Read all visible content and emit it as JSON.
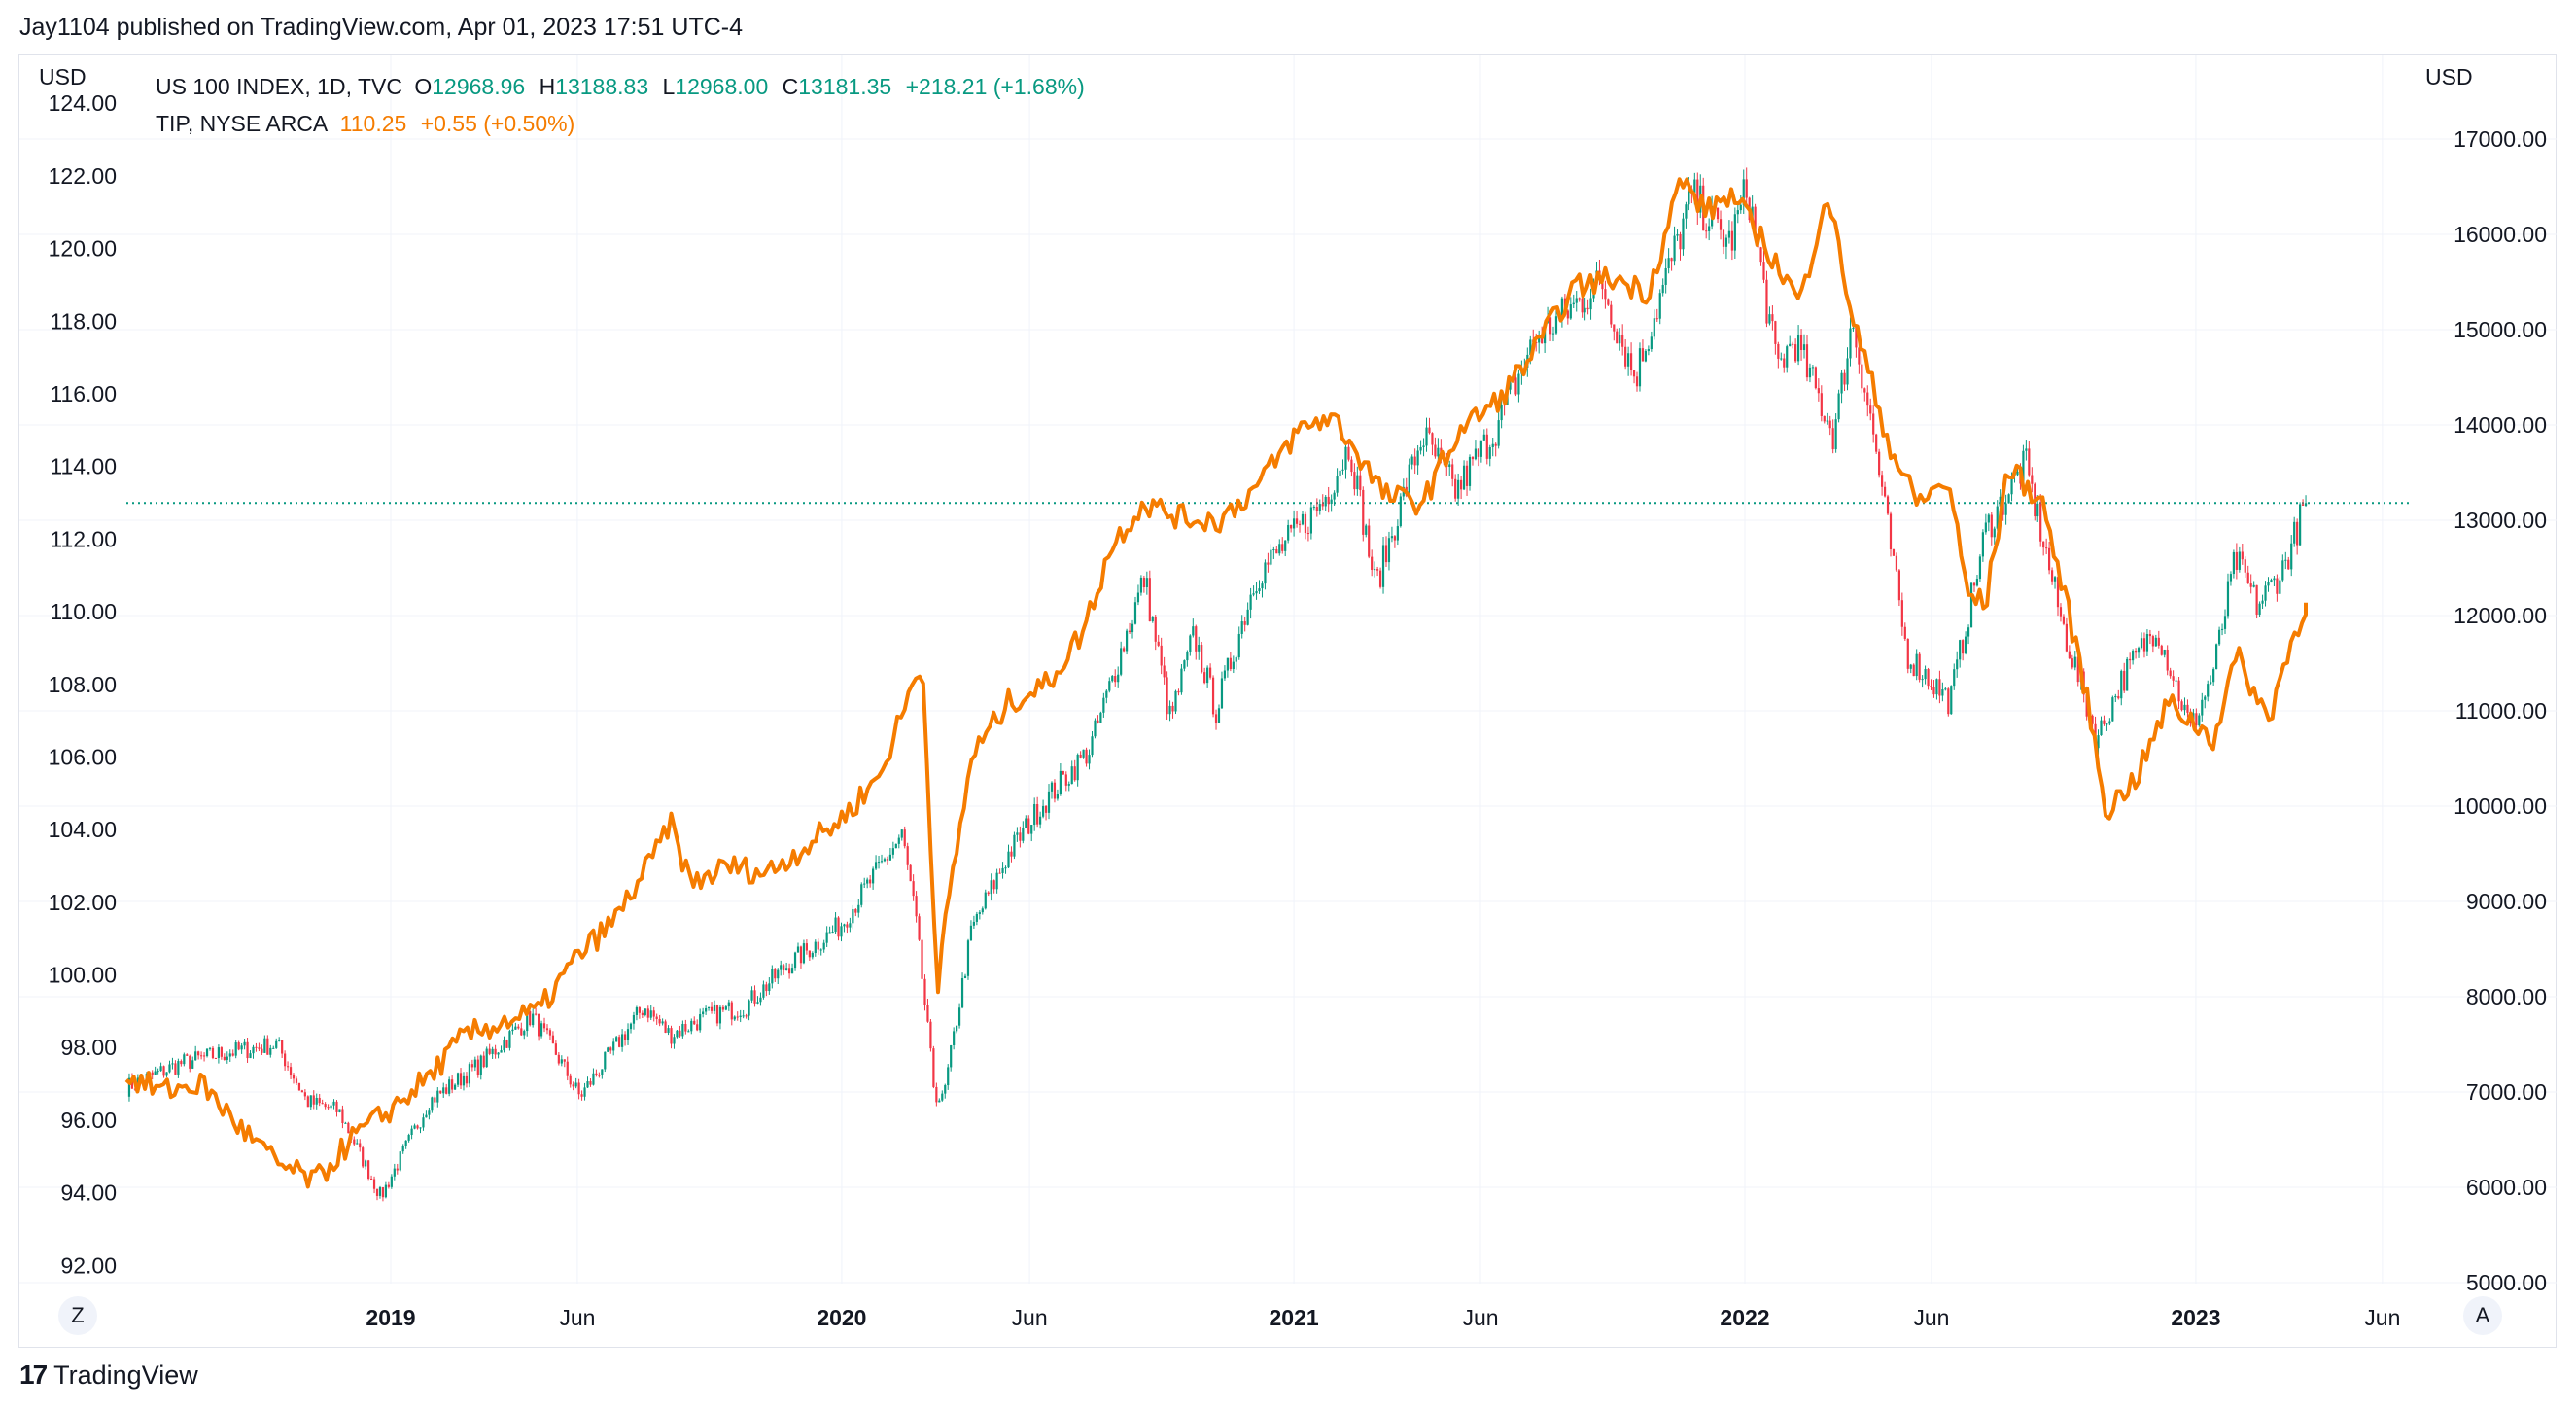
{
  "header": {
    "published": "Jay1104 published on TradingView.com, Apr 01, 2023 17:51 UTC-4"
  },
  "legend": {
    "ndx": {
      "name": "US 100 INDEX, 1D, TVC",
      "o_label": "O",
      "o": "12968.96",
      "h_label": "H",
      "h": "13188.83",
      "l_label": "L",
      "l": "12968.00",
      "c_label": "C",
      "c": "13181.35",
      "chg": "+218.21 (+1.68%)"
    },
    "tip": {
      "name": "TIP, NYSE ARCA",
      "value": "110.25",
      "chg": "+0.55 (+0.50%)"
    }
  },
  "axis": {
    "left_unit": "USD",
    "right_unit": "USD",
    "left_scale_btn": "Z",
    "right_scale_btn": "A"
  },
  "brand": {
    "name": "TradingView"
  },
  "colors": {
    "up": "#089981",
    "down": "#f23645",
    "tip": "#f57c00",
    "grid": "#f0f3fa",
    "price_line": "#089981"
  },
  "chart_data": {
    "type": "line",
    "x_tick_labels": [
      "2019",
      "Jun",
      "2020",
      "Jun",
      "2021",
      "Jun",
      "2022",
      "Jun",
      "2023",
      "Jun"
    ],
    "x_tick_dates": [
      "2019-01-01",
      "2019-06-01",
      "2020-01-01",
      "2020-06-01",
      "2021-01-01",
      "2021-06-01",
      "2022-01-01",
      "2022-06-01",
      "2023-01-01",
      "2023-06-01"
    ],
    "x_tick_bold": [
      true,
      false,
      true,
      false,
      true,
      false,
      true,
      false,
      true,
      false
    ],
    "xlim": [
      "2018-06-01",
      "2023-06-20"
    ],
    "left_axis": {
      "ylim": [
        91.5,
        124.3
      ],
      "ticks": [
        "124.00",
        "122.00",
        "120.00",
        "118.00",
        "116.00",
        "114.00",
        "112.00",
        "110.00",
        "108.00",
        "106.00",
        "104.00",
        "102.00",
        "100.00",
        "98.00",
        "96.00",
        "94.00",
        "92.00"
      ],
      "tick_values": [
        124,
        122,
        120,
        118,
        116,
        114,
        112,
        110,
        108,
        106,
        104,
        102,
        100,
        98,
        96,
        94,
        92
      ]
    },
    "right_axis": {
      "ylim": [
        4990,
        17490
      ],
      "ticks": [
        "17000.00",
        "16000.00",
        "15000.00",
        "14000.00",
        "13000.00",
        "12000.00",
        "11000.00",
        "10000.00",
        "9000.00",
        "8000.00",
        "7000.00",
        "6000.00",
        "5000.00"
      ],
      "tick_values": [
        17000,
        16000,
        15000,
        14000,
        13000,
        12000,
        11000,
        10000,
        9000,
        8000,
        7000,
        6000,
        5000
      ]
    },
    "last_price_line": 13181.35,
    "series": [
      {
        "name": "US 100 INDEX, 1D, TVC",
        "axis": "right",
        "style": "candles",
        "x": [
          "2018-06-01",
          "2018-07-15",
          "2018-08-15",
          "2018-10-01",
          "2018-10-25",
          "2018-11-20",
          "2018-12-24",
          "2019-02-01",
          "2019-03-15",
          "2019-04-25",
          "2019-05-15",
          "2019-06-03",
          "2019-07-25",
          "2019-08-15",
          "2019-09-15",
          "2019-10-15",
          "2019-11-15",
          "2019-12-31",
          "2020-02-19",
          "2020-03-01",
          "2020-03-16",
          "2020-03-23",
          "2020-04-15",
          "2020-05-15",
          "2020-06-10",
          "2020-07-20",
          "2020-09-02",
          "2020-09-23",
          "2020-10-12",
          "2020-10-30",
          "2020-12-01",
          "2021-01-25",
          "2021-02-15",
          "2021-03-08",
          "2021-04-15",
          "2021-05-12",
          "2021-06-15",
          "2021-07-15",
          "2021-09-07",
          "2021-10-04",
          "2021-11-19",
          "2021-12-20",
          "2022-01-03",
          "2022-01-27",
          "2022-02-10",
          "2022-03-14",
          "2022-03-29",
          "2022-04-15",
          "2022-05-12",
          "2022-06-16",
          "2022-07-15",
          "2022-08-16",
          "2022-09-15",
          "2022-10-13",
          "2022-11-01",
          "2022-11-30",
          "2022-12-28",
          "2023-01-15",
          "2023-02-02",
          "2023-02-20",
          "2023-03-13",
          "2023-03-31"
        ],
        "values": [
          7050,
          7300,
          7400,
          7500,
          6900,
          6800,
          5900,
          6900,
          7300,
          7800,
          7400,
          6950,
          7900,
          7600,
          7800,
          7900,
          8300,
          8750,
          9700,
          8800,
          7000,
          6900,
          8700,
          9500,
          10000,
          10600,
          12400,
          10900,
          11800,
          11000,
          12400,
          13200,
          13800,
          12300,
          13900,
          13300,
          14000,
          14900,
          15500,
          14500,
          16400,
          15900,
          16500,
          14600,
          14900,
          13900,
          15100,
          13900,
          11600,
          11100,
          12900,
          13600,
          11900,
          10700,
          11300,
          11900,
          10800,
          11400,
          12600,
          12100,
          12500,
          13181
        ]
      },
      {
        "name": "TIP, NYSE ARCA",
        "axis": "left",
        "style": "line",
        "x": [
          "2018-06-01",
          "2018-07-01",
          "2018-08-01",
          "2018-09-01",
          "2018-10-01",
          "2018-11-01",
          "2018-12-01",
          "2019-01-01",
          "2019-02-01",
          "2019-03-01",
          "2019-04-01",
          "2019-05-01",
          "2019-06-01",
          "2019-07-01",
          "2019-08-01",
          "2019-08-15",
          "2019-09-01",
          "2019-10-01",
          "2019-11-01",
          "2019-12-01",
          "2020-01-01",
          "2020-02-01",
          "2020-03-06",
          "2020-03-19",
          "2020-03-25",
          "2020-04-15",
          "2020-05-15",
          "2020-06-15",
          "2020-07-15",
          "2020-08-06",
          "2020-09-01",
          "2020-10-01",
          "2020-11-01",
          "2020-12-01",
          "2021-01-05",
          "2021-02-01",
          "2021-02-25",
          "2021-03-15",
          "2021-04-15",
          "2021-05-15",
          "2021-06-15",
          "2021-07-15",
          "2021-08-15",
          "2021-09-15",
          "2021-10-15",
          "2021-11-10",
          "2021-12-01",
          "2021-12-20",
          "2022-01-10",
          "2022-02-15",
          "2022-03-08",
          "2022-03-30",
          "2022-04-29",
          "2022-05-20",
          "2022-06-15",
          "2022-06-30",
          "2022-07-15",
          "2022-08-02",
          "2022-08-30",
          "2022-09-30",
          "2022-10-21",
          "2022-11-15",
          "2022-12-10",
          "2023-01-15",
          "2023-02-03",
          "2023-03-01",
          "2023-03-10",
          "2023-03-31"
        ],
        "values": [
          97.2,
          96.8,
          97.0,
          95.8,
          94.8,
          94.3,
          95.5,
          96.3,
          97.2,
          98.3,
          98.7,
          99.0,
          100.5,
          101.5,
          103.2,
          104.2,
          102.5,
          103.0,
          102.8,
          103.5,
          104.3,
          105.5,
          108.7,
          99.5,
          101.5,
          106.0,
          107.5,
          108.0,
          109.5,
          111.8,
          113.0,
          112.6,
          112.5,
          113.4,
          115.0,
          115.4,
          114.2,
          113.2,
          113.0,
          115.0,
          115.8,
          117.2,
          118.9,
          119.2,
          118.8,
          121.9,
          121.0,
          121.5,
          120.5,
          118.5,
          121.6,
          118.0,
          114.5,
          113.0,
          113.6,
          110.5,
          110.2,
          114.0,
          113.0,
          108.5,
          104.5,
          105.5,
          107.5,
          106.5,
          108.8,
          107.0,
          108.2,
          110.25
        ]
      }
    ]
  }
}
